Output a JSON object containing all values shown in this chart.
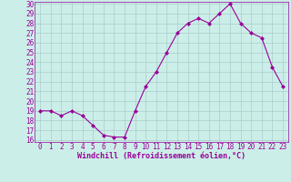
{
  "x": [
    0,
    1,
    2,
    3,
    4,
    5,
    6,
    7,
    8,
    9,
    10,
    11,
    12,
    13,
    14,
    15,
    16,
    17,
    18,
    19,
    20,
    21,
    22,
    23
  ],
  "y": [
    19,
    19,
    18.5,
    19,
    18.5,
    17.5,
    16.5,
    16.3,
    16.3,
    19,
    21.5,
    23,
    25,
    27,
    28,
    28.5,
    28,
    29,
    30,
    28,
    27,
    26.5,
    23.5,
    21.5
  ],
  "line_color": "#990099",
  "marker": "D",
  "markersize": 2,
  "linewidth": 0.8,
  "bg_color": "#cceee8",
  "grid_color": "#aacccc",
  "xlabel": "Windchill (Refroidissement éolien,°C)",
  "ylim": [
    16,
    30
  ],
  "xlim": [
    -0.5,
    23.5
  ],
  "yticks": [
    16,
    17,
    18,
    19,
    20,
    21,
    22,
    23,
    24,
    25,
    26,
    27,
    28,
    29,
    30
  ],
  "xticks": [
    0,
    1,
    2,
    3,
    4,
    5,
    6,
    7,
    8,
    9,
    10,
    11,
    12,
    13,
    14,
    15,
    16,
    17,
    18,
    19,
    20,
    21,
    22,
    23
  ],
  "tick_fontsize": 5.5,
  "xlabel_fontsize": 6
}
